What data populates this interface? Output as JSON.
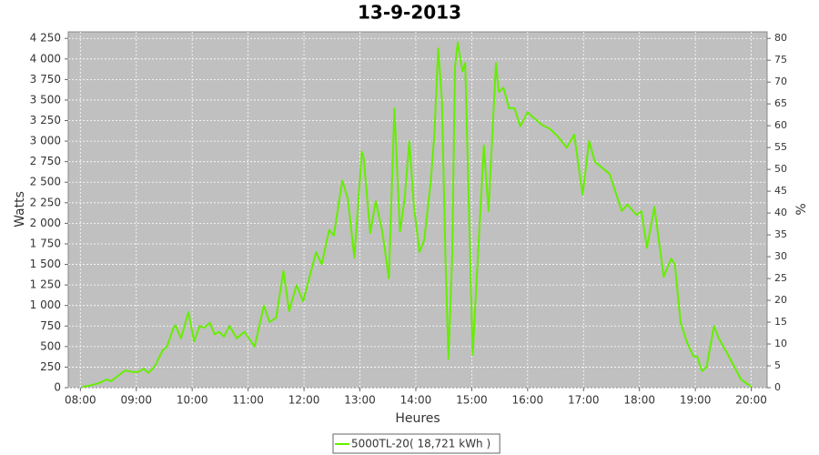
{
  "chart_data": {
    "type": "line",
    "title": "13-9-2013",
    "x_label": "Heures",
    "y_label": "Watts",
    "y2_label": "%",
    "x": [
      "08:02",
      "08:12",
      "08:21",
      "08:28",
      "08:33",
      "08:41",
      "08:48",
      "08:56",
      "09:02",
      "09:08",
      "09:13",
      "09:20",
      "09:28",
      "09:33",
      "09:40",
      "09:42",
      "09:48",
      "09:56",
      "10:02",
      "10:08",
      "10:13",
      "10:19",
      "10:24",
      "10:29",
      "10:34",
      "10:40",
      "10:48",
      "10:56",
      "11:07",
      "11:17",
      "11:23",
      "11:30",
      "11:38",
      "11:44",
      "11:52",
      "11:59",
      "12:06",
      "12:13",
      "12:19",
      "12:27",
      "12:32",
      "12:41",
      "12:47",
      "12:54",
      "13:02",
      "13:04",
      "13:11",
      "13:17",
      "13:24",
      "13:31",
      "13:37",
      "13:43",
      "13:48",
      "13:53",
      "13:58",
      "14:04",
      "14:09",
      "14:16",
      "14:20",
      "14:24",
      "14:28",
      "14:32",
      "14:35",
      "14:39",
      "14:42",
      "14:45",
      "14:50",
      "14:53",
      "15:01",
      "15:13",
      "15:18",
      "15:26",
      "15:29",
      "15:34",
      "15:40",
      "15:46",
      "15:52",
      "16:00",
      "16:15",
      "16:24",
      "16:33",
      "16:42",
      "16:50",
      "16:59",
      "17:06",
      "17:12",
      "17:28",
      "17:41",
      "17:47",
      "17:57",
      "18:02",
      "18:08",
      "18:16",
      "18:26",
      "18:34",
      "18:38",
      "18:44",
      "18:51",
      "18:58",
      "19:02",
      "19:07",
      "19:12",
      "19:20",
      "19:25",
      "19:35",
      "19:49",
      "20:00"
    ],
    "series": [
      {
        "name": "5000TL-20( 18,721 kWh )",
        "color": "#66ee00",
        "values": [
          10,
          30,
          60,
          100,
          80,
          150,
          210,
          190,
          190,
          230,
          180,
          260,
          450,
          500,
          730,
          760,
          600,
          920,
          560,
          750,
          730,
          790,
          650,
          680,
          620,
          750,
          600,
          680,
          500,
          1000,
          800,
          850,
          1420,
          930,
          1250,
          1050,
          1350,
          1650,
          1500,
          1920,
          1850,
          2520,
          2300,
          1580,
          2870,
          2800,
          1880,
          2270,
          1900,
          1330,
          3400,
          1900,
          2300,
          3000,
          2200,
          1650,
          1800,
          2500,
          3100,
          4130,
          3500,
          1500,
          350,
          1600,
          3900,
          4200,
          3850,
          3950,
          400,
          2950,
          2150,
          3950,
          3600,
          3650,
          3400,
          3400,
          3180,
          3350,
          3200,
          3150,
          3050,
          2920,
          3080,
          2350,
          3000,
          2750,
          2600,
          2150,
          2230,
          2100,
          2150,
          1700,
          2200,
          1350,
          1570,
          1500,
          800,
          550,
          380,
          380,
          200,
          250,
          750,
          600,
          400,
          100,
          10
        ]
      }
    ],
    "xlim": [
      "07:47",
      "20:17"
    ],
    "xticks": [
      "08:00",
      "09:00",
      "10:00",
      "11:00",
      "12:00",
      "13:00",
      "14:00",
      "15:00",
      "16:00",
      "17:00",
      "18:00",
      "19:00",
      "20:00"
    ],
    "ylim": [
      0,
      4330
    ],
    "yticks": [
      0,
      250,
      500,
      750,
      {
        "value": 1000,
        "label": "1 000"
      },
      {
        "value": 1250,
        "label": "1 250"
      },
      {
        "value": 1500,
        "label": "1 500"
      },
      {
        "value": 1750,
        "label": "1 750"
      },
      {
        "value": 2000,
        "label": "2 000"
      },
      {
        "value": 2250,
        "label": "2 250"
      },
      {
        "value": 2500,
        "label": "2 500"
      },
      {
        "value": 2750,
        "label": "2 750"
      },
      {
        "value": 3000,
        "label": "3 000"
      },
      {
        "value": 3250,
        "label": "3 250"
      },
      {
        "value": 3500,
        "label": "3 500"
      },
      {
        "value": 3750,
        "label": "3 750"
      },
      {
        "value": 4000,
        "label": "4 000"
      },
      {
        "value": 4250,
        "label": "4 250"
      }
    ],
    "y2lim": [
      0,
      81.5
    ],
    "y2ticks": [
      0,
      5,
      10,
      15,
      20,
      25,
      30,
      35,
      40,
      45,
      50,
      55,
      60,
      65,
      70,
      75,
      80
    ],
    "grid": true,
    "legend": "bottom"
  }
}
